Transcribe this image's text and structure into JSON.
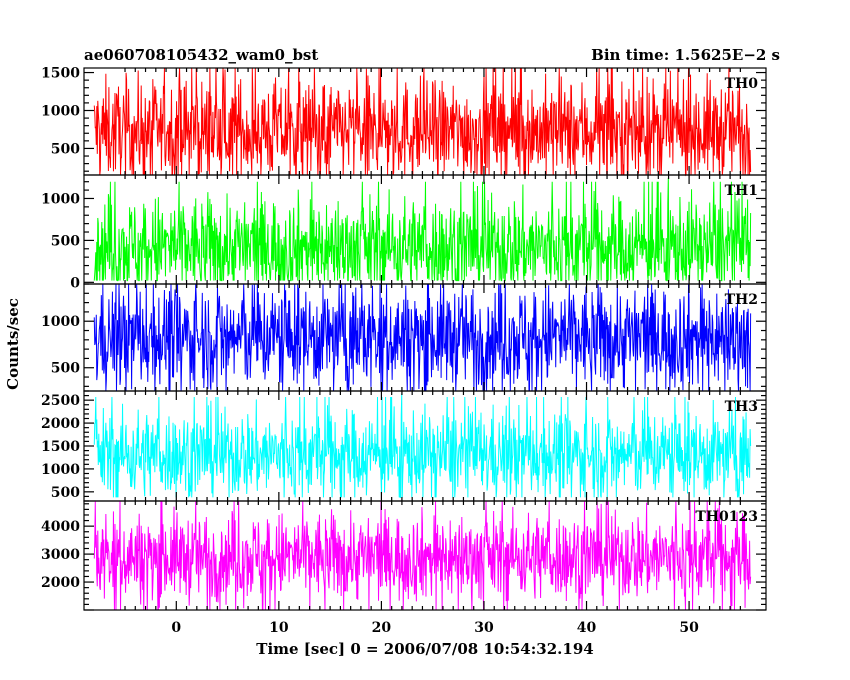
{
  "chart_data": {
    "type": "line",
    "title_left": "ae060708105432_wam0_bst",
    "title_right": "Bin time: 1.5625E−2 s",
    "xlabel": "Time [sec] 0 = 2006/07/08 10:54:32.194",
    "ylabel": "Counts/sec",
    "xlim": [
      -9,
      57.5
    ],
    "x_range": [
      -8,
      56
    ],
    "x_ticks": [
      0,
      10,
      20,
      30,
      40,
      50
    ],
    "grid": false,
    "panels": [
      {
        "name": "TH0",
        "color": "#ff0000",
        "ylim": [
          150,
          1560
        ],
        "y_ticks": [
          500,
          1000,
          1500
        ],
        "y_tick_labels": [
          "500",
          "1000",
          "1500"
        ],
        "center": 730,
        "spread": 330,
        "min": 150,
        "max": 1560
      },
      {
        "name": "TH1",
        "color": "#00ff00",
        "ylim": [
          -20,
          1280
        ],
        "y_ticks": [
          0,
          500,
          1000
        ],
        "y_tick_labels": [
          "0",
          "500",
          "1000"
        ],
        "center": 420,
        "spread": 300,
        "min": 20,
        "max": 1280
      },
      {
        "name": "TH2",
        "color": "#0000ff",
        "ylim": [
          250,
          1400
        ],
        "y_ticks": [
          500,
          1000
        ],
        "y_tick_labels": [
          "500",
          "1000"
        ],
        "center": 830,
        "spread": 280,
        "min": 250,
        "max": 1400
      },
      {
        "name": "TH3",
        "color": "#00ffff",
        "ylim": [
          300,
          2700
        ],
        "y_ticks": [
          500,
          1000,
          1500,
          2000,
          2500
        ],
        "y_tick_labels": [
          "500",
          "1000",
          "1500",
          "2000",
          "2500"
        ],
        "center": 1320,
        "spread": 480,
        "min": 380,
        "max": 2700
      },
      {
        "name": "TH0123",
        "color": "#ff00ff",
        "ylim": [
          1000,
          4900
        ],
        "y_ticks": [
          2000,
          3000,
          4000
        ],
        "y_tick_labels": [
          "2000",
          "3000",
          "4000"
        ],
        "center": 2900,
        "spread": 780,
        "min": 1000,
        "max": 4900
      }
    ]
  }
}
